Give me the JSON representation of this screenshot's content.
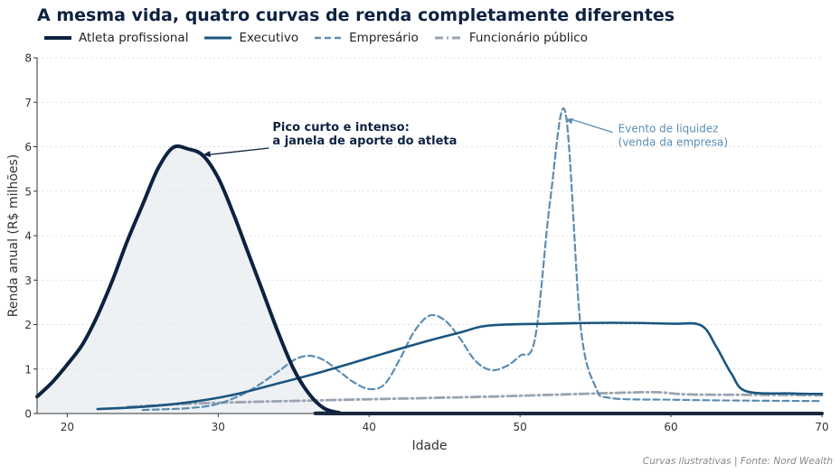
{
  "chart_data": {
    "type": "line",
    "title": "A mesma vida, quatro curvas de renda completamente diferentes",
    "xlabel": "Idade",
    "ylabel": "Renda anual (R$ milhões)",
    "xlim": [
      18,
      70
    ],
    "ylim": [
      0,
      8
    ],
    "xticks": [
      20,
      30,
      40,
      50,
      60,
      70
    ],
    "yticks": [
      0,
      1,
      2,
      3,
      4,
      5,
      6,
      7,
      8
    ],
    "grid": "horizontal dotted",
    "legend_position": "top-left",
    "series": [
      {
        "name": "Atleta profissional",
        "color": "#0d2240",
        "style": "solid",
        "fill": true,
        "points": [
          [
            18,
            0.38
          ],
          [
            19,
            0.7
          ],
          [
            20,
            1.1
          ],
          [
            21,
            1.55
          ],
          [
            22,
            2.2
          ],
          [
            23,
            3.0
          ],
          [
            24,
            3.9
          ],
          [
            25,
            4.7
          ],
          [
            26,
            5.5
          ],
          [
            27,
            5.98
          ],
          [
            28,
            5.95
          ],
          [
            29,
            5.8
          ],
          [
            30,
            5.3
          ],
          [
            31,
            4.5
          ],
          [
            32,
            3.6
          ],
          [
            33,
            2.7
          ],
          [
            34,
            1.8
          ],
          [
            35,
            1.0
          ],
          [
            36,
            0.45
          ],
          [
            37,
            0.12
          ],
          [
            38,
            0.02
          ],
          [
            39,
            0.0
          ],
          [
            70,
            0.0
          ]
        ]
      },
      {
        "name": "Executivo",
        "color": "#1a5580",
        "style": "solid",
        "points": [
          [
            22,
            0.1
          ],
          [
            25,
            0.15
          ],
          [
            28,
            0.25
          ],
          [
            31,
            0.42
          ],
          [
            34,
            0.68
          ],
          [
            37,
            0.95
          ],
          [
            40,
            1.25
          ],
          [
            43,
            1.55
          ],
          [
            46,
            1.82
          ],
          [
            48,
            1.98
          ],
          [
            52,
            2.02
          ],
          [
            56,
            2.04
          ],
          [
            60,
            2.02
          ],
          [
            62,
            1.98
          ],
          [
            63,
            1.5
          ],
          [
            64,
            0.9
          ],
          [
            65,
            0.5
          ],
          [
            68,
            0.45
          ],
          [
            70,
            0.44
          ]
        ]
      },
      {
        "name": "Empresário",
        "color": "#5b8db3",
        "style": "dashed",
        "points": [
          [
            25,
            0.08
          ],
          [
            28,
            0.12
          ],
          [
            30,
            0.22
          ],
          [
            32,
            0.5
          ],
          [
            34,
            0.95
          ],
          [
            35,
            1.2
          ],
          [
            36,
            1.3
          ],
          [
            37,
            1.2
          ],
          [
            38,
            0.95
          ],
          [
            39,
            0.7
          ],
          [
            40,
            0.55
          ],
          [
            41,
            0.65
          ],
          [
            42,
            1.2
          ],
          [
            43,
            1.85
          ],
          [
            44,
            2.2
          ],
          [
            45,
            2.1
          ],
          [
            46,
            1.7
          ],
          [
            47,
            1.2
          ],
          [
            48,
            0.98
          ],
          [
            49,
            1.05
          ],
          [
            50,
            1.3
          ],
          [
            51,
            1.7
          ],
          [
            52,
            4.8
          ],
          [
            53,
            6.78
          ],
          [
            54,
            2.0
          ],
          [
            55,
            0.6
          ],
          [
            56,
            0.35
          ],
          [
            60,
            0.31
          ],
          [
            65,
            0.29
          ],
          [
            70,
            0.28
          ]
        ]
      },
      {
        "name": "Funcionário público",
        "color": "#9aa4b0",
        "style": "dashdot",
        "points": [
          [
            24,
            0.15
          ],
          [
            28,
            0.22
          ],
          [
            32,
            0.26
          ],
          [
            36,
            0.29
          ],
          [
            40,
            0.32
          ],
          [
            44,
            0.35
          ],
          [
            48,
            0.38
          ],
          [
            52,
            0.42
          ],
          [
            56,
            0.46
          ],
          [
            59,
            0.48
          ],
          [
            61,
            0.43
          ],
          [
            65,
            0.42
          ],
          [
            70,
            0.41
          ]
        ]
      }
    ],
    "annotations": [
      {
        "text": [
          "Pico curto e intenso:",
          "a janela de aporte do atleta"
        ],
        "target": [
          29,
          5.82
        ],
        "text_pos": [
          33.6,
          6.05
        ],
        "color": "#0d2240",
        "bold": true
      },
      {
        "text": [
          "Evento de liquidez",
          "(venda da empresa)"
        ],
        "target": [
          53,
          6.62
        ],
        "text_pos": [
          56.5,
          6.2
        ],
        "color": "#5b8db3",
        "bold": false
      }
    ],
    "source": "Curvas ilustrativas | Fonte: Nord Wealth"
  }
}
